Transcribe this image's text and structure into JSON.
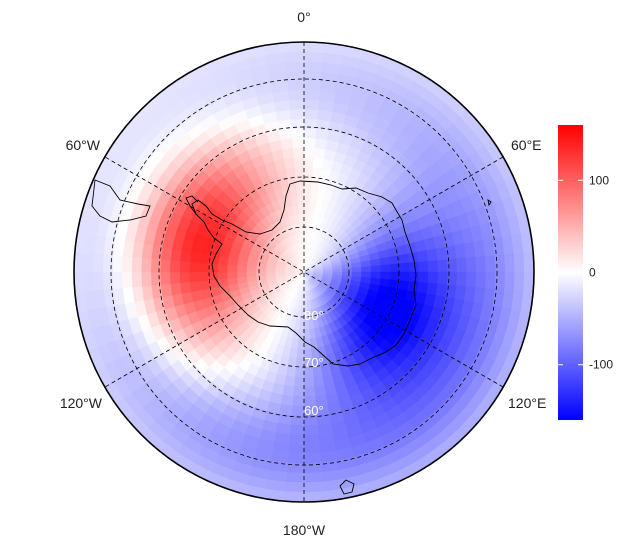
{
  "map": {
    "projection": "south-polar-stereographic",
    "center_label": "",
    "longitude_labels": {
      "lon_0": "0°",
      "lon_60e": "60°E",
      "lon_120e": "120°E",
      "lon_180": "180°W",
      "lon_120w": "120°W",
      "lon_60w": "60°W"
    },
    "latitude_labels": {
      "lat_80": "80°",
      "lat_70": "70°",
      "lat_60": "60°"
    }
  },
  "colorbar": {
    "min": -160,
    "max": 160,
    "ticks": [
      {
        "value": 100,
        "label": "100"
      },
      {
        "value": 0,
        "label": "0"
      },
      {
        "value": -100,
        "label": "-100"
      }
    ],
    "colors": {
      "high": "#ff0000",
      "mid": "#ffffff",
      "low": "#0000ff"
    }
  },
  "field": {
    "description_units": "",
    "centers": [
      {
        "name": "positive-anomaly",
        "lon": -75,
        "lat": -67,
        "value": 150
      },
      {
        "name": "negative-anomaly",
        "lon": 115,
        "lat": -72,
        "value": -160
      }
    ]
  }
}
